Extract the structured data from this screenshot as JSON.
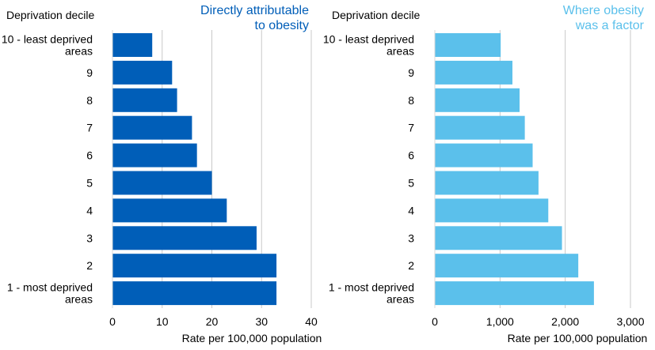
{
  "chart_data": [
    {
      "type": "bar",
      "orientation": "horizontal",
      "title": "Directly attributable\nto obesity",
      "ylabel": "Deprivation decile",
      "xlabel": "Rate per 100,000 population",
      "categories": [
        "10 - least deprived\nareas",
        "9",
        "8",
        "7",
        "6",
        "5",
        "4",
        "3",
        "2",
        "1 - most deprived\nareas"
      ],
      "values": [
        8,
        12,
        13,
        16,
        17,
        20,
        23,
        29,
        33,
        33
      ],
      "xlim": [
        0,
        40
      ],
      "xticks": [
        0,
        10,
        20,
        30,
        40
      ],
      "xtick_labels": [
        "0",
        "10",
        "20",
        "30",
        "40"
      ],
      "color": "#005eb8",
      "title_color": "#005eb8",
      "grid": "vertical",
      "legend": "none"
    },
    {
      "type": "bar",
      "orientation": "horizontal",
      "title": "Where obesity\nwas a factor",
      "ylabel": "Deprivation decile",
      "xlabel": "Rate per 100,000 population",
      "categories": [
        "10 - least deprived\nareas",
        "9",
        "8",
        "7",
        "6",
        "5",
        "4",
        "3",
        "2",
        "1 - most deprived\nareas"
      ],
      "values": [
        1010,
        1190,
        1300,
        1380,
        1500,
        1590,
        1740,
        1950,
        2200,
        2440
      ],
      "xlim": [
        0,
        3000
      ],
      "xticks": [
        0,
        1000,
        2000,
        3000
      ],
      "xtick_labels": [
        "0",
        "1,000",
        "2,000",
        "3,000"
      ],
      "color": "#5bc0eb",
      "title_color": "#5bc0eb",
      "grid": "vertical",
      "legend": "none"
    }
  ]
}
